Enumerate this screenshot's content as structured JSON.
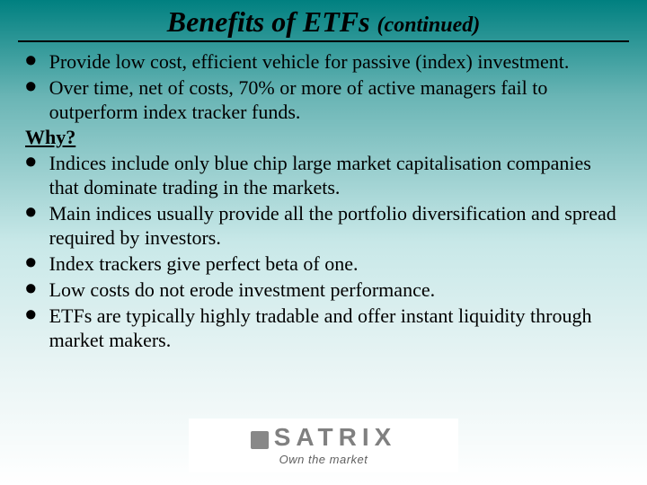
{
  "title_main": "Benefits of ETFs ",
  "title_cont": "(continued)",
  "bullets_a": [
    "Provide low cost, efficient vehicle for passive (index) investment.",
    "Over time, net of costs, 70% or more of active managers fail to outperform index tracker funds."
  ],
  "why_label": "Why?",
  "bullets_b": [
    "Indices include only blue chip large market capitalisation companies that dominate trading in the markets.",
    "Main indices usually provide all the portfolio diversification and spread required by investors.",
    "Index trackers give perfect beta of one.",
    "Low costs do not erode investment performance.",
    "ETFs are typically highly tradable and offer instant liquidity through market makers."
  ],
  "logo_name": "SATRIX",
  "logo_tagline": "Own the market",
  "colors": {
    "gradient_top": "#008080",
    "gradient_bottom": "#ffffff",
    "text": "#000000",
    "logo_gray": "#808080"
  },
  "typography": {
    "title_fontsize": 32,
    "body_fontsize": 22,
    "font_family": "Times New Roman"
  }
}
